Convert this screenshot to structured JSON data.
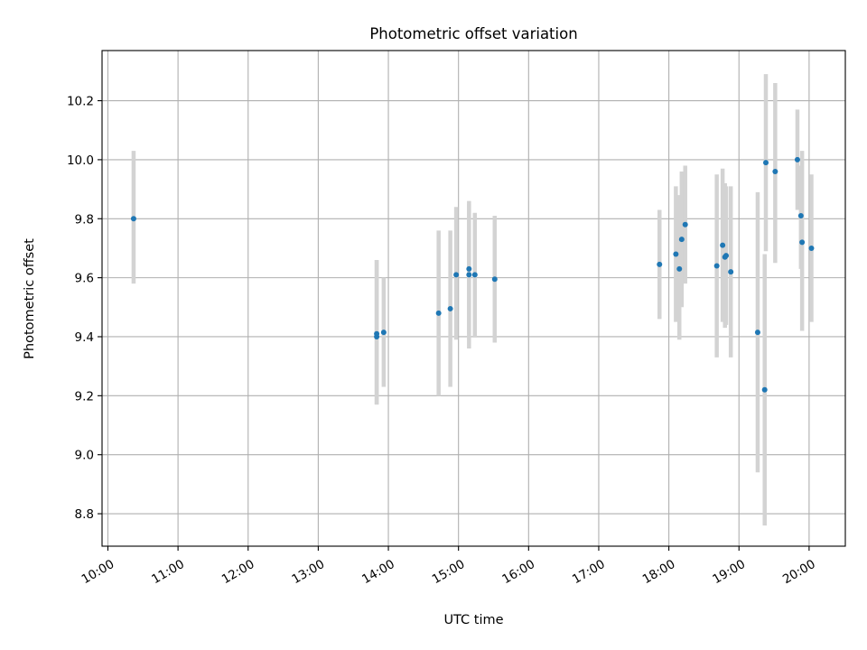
{
  "chart_data": {
    "type": "scatter",
    "title": "Photometric offset variation",
    "xlabel": "UTC time",
    "ylabel": "Photometric offset",
    "xlim": [
      "09:55",
      "20:31"
    ],
    "ylim": [
      8.69,
      10.37
    ],
    "xticks": [
      "10:00",
      "11:00",
      "12:00",
      "13:00",
      "14:00",
      "15:00",
      "16:00",
      "17:00",
      "18:00",
      "19:00",
      "20:00"
    ],
    "yticks": [
      8.8,
      9.0,
      9.2,
      9.4,
      9.6,
      9.8,
      10.0,
      10.2
    ],
    "grid": true,
    "point_color": "#1f77b4",
    "errorbar_color": "#d3d3d3",
    "series": [
      {
        "points": [
          {
            "x": "10:22",
            "y": 9.8,
            "ylow": 9.58,
            "yhigh": 10.03
          },
          {
            "x": "13:50",
            "y": 9.4,
            "ylow": 9.17,
            "yhigh": 9.66
          },
          {
            "x": "13:50",
            "y": 9.41,
            "ylow": 9.17,
            "yhigh": 9.66
          },
          {
            "x": "13:56",
            "y": 9.415,
            "ylow": 9.23,
            "yhigh": 9.6
          },
          {
            "x": "14:43",
            "y": 9.48,
            "ylow": 9.2,
            "yhigh": 9.76
          },
          {
            "x": "14:53",
            "y": 9.495,
            "ylow": 9.23,
            "yhigh": 9.76
          },
          {
            "x": "14:58",
            "y": 9.61,
            "ylow": 9.39,
            "yhigh": 9.84
          },
          {
            "x": "15:09",
            "y": 9.63,
            "ylow": 9.41,
            "yhigh": 9.85
          },
          {
            "x": "15:09",
            "y": 9.61,
            "ylow": 9.36,
            "yhigh": 9.86
          },
          {
            "x": "15:14",
            "y": 9.61,
            "ylow": 9.4,
            "yhigh": 9.82
          },
          {
            "x": "15:31",
            "y": 9.595,
            "ylow": 9.38,
            "yhigh": 9.81
          },
          {
            "x": "17:52",
            "y": 9.645,
            "ylow": 9.46,
            "yhigh": 9.83
          },
          {
            "x": "18:06",
            "y": 9.68,
            "ylow": 9.45,
            "yhigh": 9.91
          },
          {
            "x": "18:09",
            "y": 9.63,
            "ylow": 9.39,
            "yhigh": 9.88
          },
          {
            "x": "18:11",
            "y": 9.73,
            "ylow": 9.5,
            "yhigh": 9.96
          },
          {
            "x": "18:14",
            "y": 9.78,
            "ylow": 9.58,
            "yhigh": 9.98
          },
          {
            "x": "18:41",
            "y": 9.64,
            "ylow": 9.33,
            "yhigh": 9.95
          },
          {
            "x": "18:46",
            "y": 9.71,
            "ylow": 9.45,
            "yhigh": 9.97
          },
          {
            "x": "18:48",
            "y": 9.67,
            "ylow": 9.43,
            "yhigh": 9.92
          },
          {
            "x": "18:49",
            "y": 9.675,
            "ylow": 9.44,
            "yhigh": 9.91
          },
          {
            "x": "18:53",
            "y": 9.62,
            "ylow": 9.33,
            "yhigh": 9.91
          },
          {
            "x": "19:16",
            "y": 9.415,
            "ylow": 8.94,
            "yhigh": 9.89
          },
          {
            "x": "19:22",
            "y": 9.22,
            "ylow": 8.76,
            "yhigh": 9.68
          },
          {
            "x": "19:23",
            "y": 9.99,
            "ylow": 9.69,
            "yhigh": 10.29
          },
          {
            "x": "19:31",
            "y": 9.96,
            "ylow": 9.65,
            "yhigh": 10.26
          },
          {
            "x": "19:50",
            "y": 10.0,
            "ylow": 9.83,
            "yhigh": 10.17
          },
          {
            "x": "19:53",
            "y": 9.81,
            "ylow": 9.63,
            "yhigh": 9.98
          },
          {
            "x": "19:54",
            "y": 9.72,
            "ylow": 9.42,
            "yhigh": 10.03
          },
          {
            "x": "20:02",
            "y": 9.7,
            "ylow": 9.45,
            "yhigh": 9.95
          }
        ]
      }
    ]
  }
}
